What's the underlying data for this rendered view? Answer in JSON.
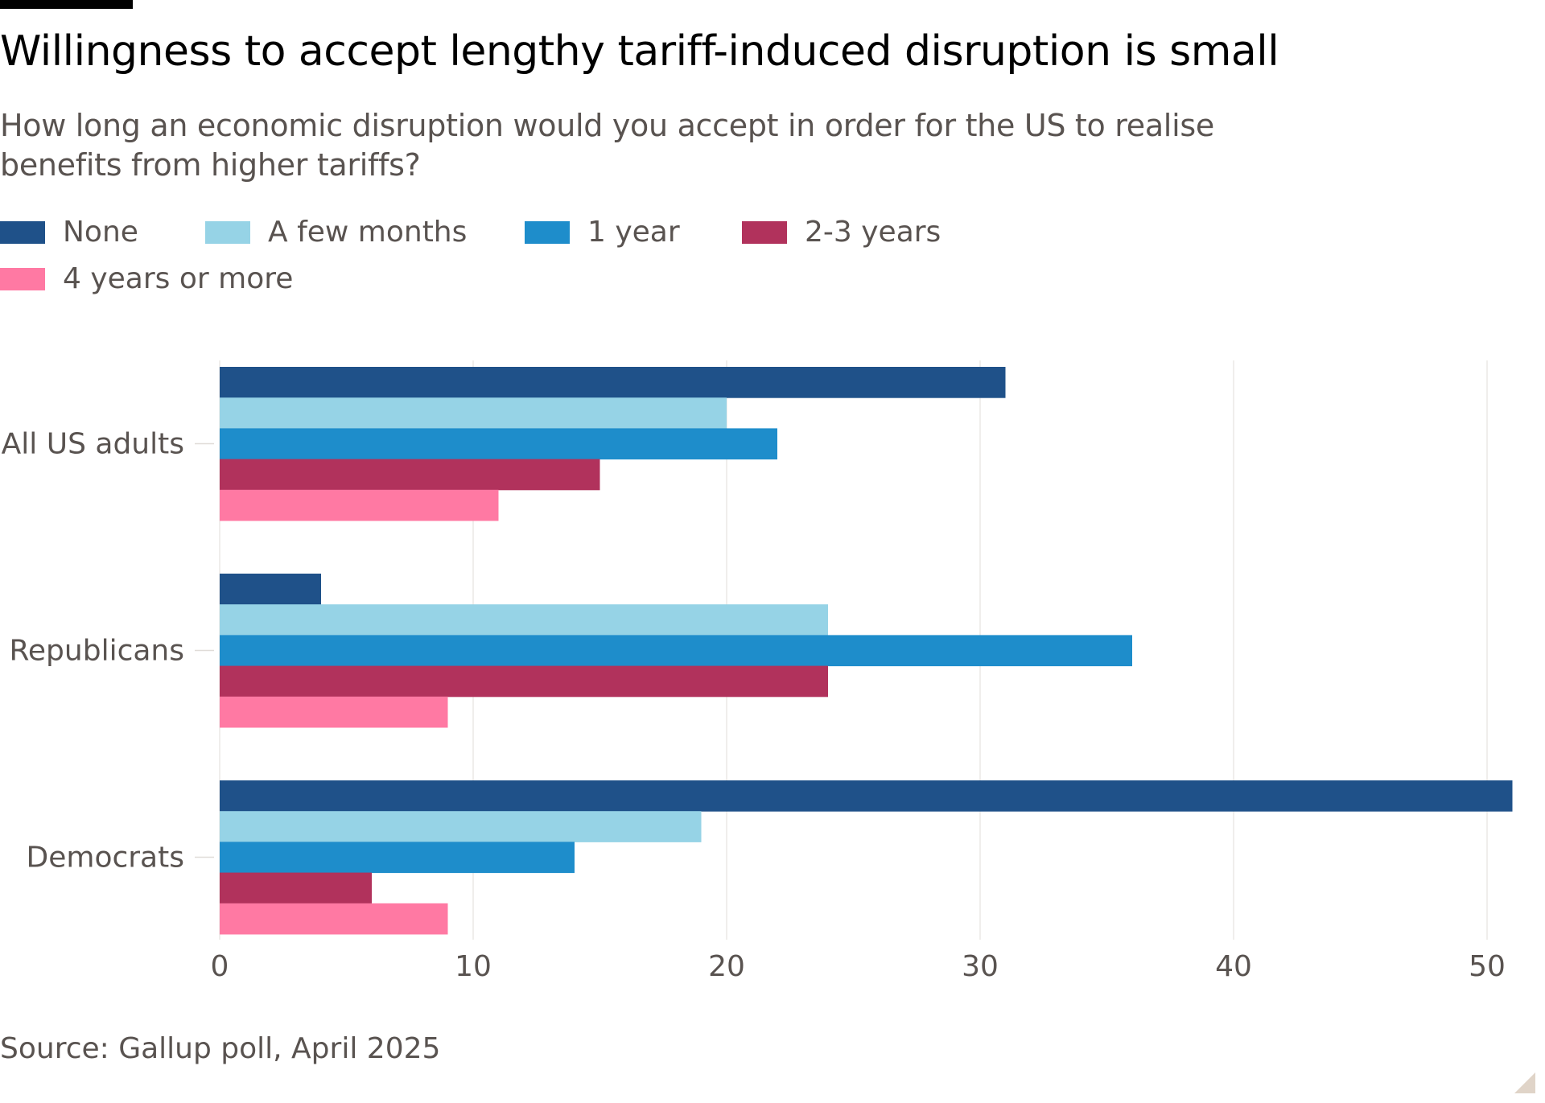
{
  "chart_data": {
    "type": "bar",
    "orientation": "horizontal",
    "title": "Willingness to accept lengthy tariff-induced disruption is small",
    "subtitle": "How long an economic disruption would you accept in order for the US to realise benefits from higher tariffs?",
    "categories": [
      "All US adults",
      "Republicans",
      "Democrats"
    ],
    "series": [
      {
        "name": "None",
        "color": "#1f5189",
        "values": [
          31,
          4,
          51
        ]
      },
      {
        "name": "A few months",
        "color": "#96d3e6",
        "values": [
          20,
          24,
          19
        ]
      },
      {
        "name": "1 year",
        "color": "#1e8dcb",
        "values": [
          22,
          36,
          14
        ]
      },
      {
        "name": "2-3 years",
        "color": "#b1325c",
        "values": [
          15,
          24,
          6
        ]
      },
      {
        "name": "4 years or more",
        "color": "#ff79a3",
        "values": [
          11,
          9,
          9
        ]
      }
    ],
    "xlabel": "",
    "ylabel": "",
    "xlim": [
      0,
      52
    ],
    "xticks": [
      0,
      10,
      20,
      30,
      40,
      50
    ],
    "grid": true,
    "legend_position": "top-left",
    "source": "Source: Gallup poll, April 2025"
  }
}
